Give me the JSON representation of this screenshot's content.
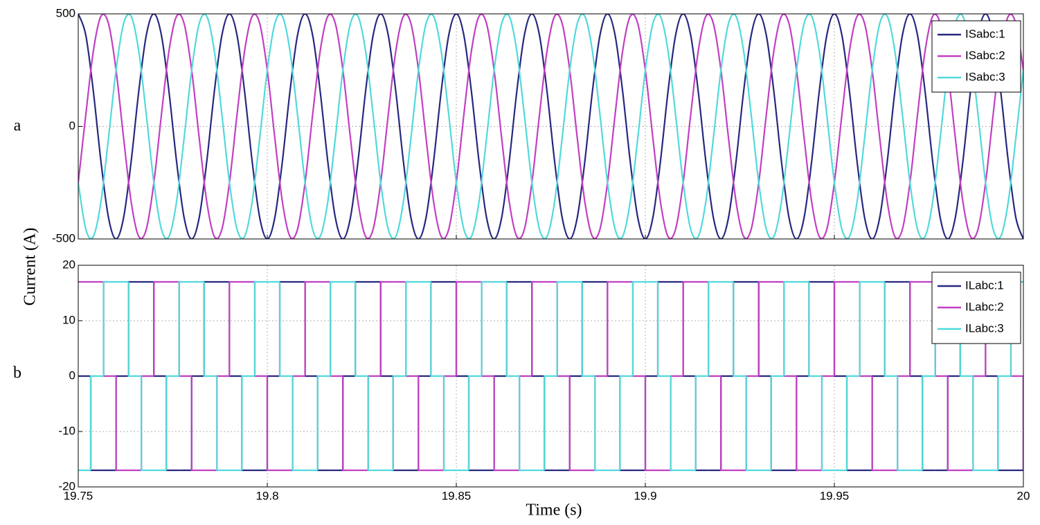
{
  "chart_data": [
    {
      "type": "line",
      "panel_label": "a",
      "ylabel": "Current (A)",
      "xlim": [
        19.75,
        20
      ],
      "xticks": [
        19.75,
        19.8,
        19.85,
        19.9,
        19.95,
        20
      ],
      "show_xticklabels": false,
      "ylim": [
        -500,
        500
      ],
      "yticks": [
        -500,
        0,
        500
      ],
      "grid": true,
      "legend": "upper right",
      "x": [
        19.75,
        19.752,
        19.754,
        19.756,
        19.758,
        19.76,
        19.762,
        19.764,
        19.766,
        19.768,
        19.77,
        19.772,
        19.774,
        19.776,
        19.778,
        19.78,
        19.782,
        19.784,
        19.786,
        19.788,
        19.79,
        19.792,
        19.794,
        19.796,
        19.798,
        19.8,
        19.802,
        19.804,
        19.806,
        19.808,
        19.81,
        19.812,
        19.814,
        19.816,
        19.818,
        19.82,
        19.822,
        19.824,
        19.826,
        19.828,
        19.83,
        19.832,
        19.834,
        19.836,
        19.838,
        19.84,
        19.842,
        19.844,
        19.846,
        19.848,
        19.85,
        19.852,
        19.854,
        19.856,
        19.858,
        19.86,
        19.862,
        19.864,
        19.866,
        19.868,
        19.87,
        19.872,
        19.874,
        19.876,
        19.878,
        19.88,
        19.882,
        19.884,
        19.886,
        19.888,
        19.89,
        19.892,
        19.894,
        19.896,
        19.898,
        19.9,
        19.902,
        19.904,
        19.906,
        19.908,
        19.91,
        19.912,
        19.914,
        19.916,
        19.918,
        19.92,
        19.922,
        19.924,
        19.926,
        19.928,
        19.93,
        19.932,
        19.934,
        19.936,
        19.938,
        19.94,
        19.942,
        19.944,
        19.946,
        19.948,
        19.95,
        19.952,
        19.954,
        19.956,
        19.958,
        19.96,
        19.962,
        19.964,
        19.966,
        19.968,
        19.97,
        19.972,
        19.974,
        19.976,
        19.978,
        19.98,
        19.982,
        19.984,
        19.986,
        19.988,
        19.99,
        19.992,
        19.994,
        19.996,
        19.998,
        20
      ],
      "series": [
        {
          "name": "ISabc:1",
          "color": "#27277f",
          "values": [
            500,
            405,
            155,
            -155,
            -405,
            -500,
            -405,
            -155,
            155,
            405,
            500,
            405,
            155,
            -155,
            -405,
            -500,
            -405,
            -155,
            155,
            405,
            500,
            405,
            155,
            -155,
            -405,
            -500,
            -405,
            -155,
            155,
            405,
            500,
            405,
            155,
            -155,
            -405,
            -500,
            -405,
            -155,
            155,
            405,
            500,
            405,
            155,
            -155,
            -405,
            -500,
            -405,
            -155,
            155,
            405,
            500,
            405,
            155,
            -155,
            -405,
            -500,
            -405,
            -155,
            155,
            405,
            500,
            405,
            155,
            -155,
            -405,
            -500,
            -405,
            -155,
            155,
            405,
            500,
            405,
            155,
            -155,
            -405,
            -500,
            -405,
            -155,
            155,
            405,
            500,
            405,
            155,
            -155,
            -405,
            -500,
            -405,
            -155,
            155,
            405,
            500,
            405,
            155,
            -155,
            -405,
            -500,
            -405,
            -155,
            155,
            405,
            500,
            405,
            155,
            -155,
            -405,
            -500,
            -405,
            -155,
            155,
            405,
            500,
            405,
            155,
            -155,
            -405,
            -500,
            -405,
            -155,
            155,
            405,
            500,
            405,
            155,
            -155,
            -405,
            -500
          ]
        },
        {
          "name": "ISabc:2",
          "color": "#c13fc1",
          "values": [
            -250,
            52,
            335,
            489,
            457,
            250,
            -52,
            -335,
            -489,
            -457,
            -250,
            52,
            335,
            489,
            457,
            250,
            -52,
            -335,
            -489,
            -457,
            -250,
            52,
            335,
            489,
            457,
            250,
            -52,
            -335,
            -489,
            -457,
            -250,
            52,
            335,
            489,
            457,
            250,
            -52,
            -335,
            -489,
            -457,
            -250,
            52,
            335,
            489,
            457,
            250,
            -52,
            -335,
            -489,
            -457,
            -250,
            52,
            335,
            489,
            457,
            250,
            -52,
            -335,
            -489,
            -457,
            -250,
            52,
            335,
            489,
            457,
            250,
            -52,
            -335,
            -489,
            -457,
            -250,
            52,
            335,
            489,
            457,
            250,
            -52,
            -335,
            -489,
            -457,
            -250,
            52,
            335,
            489,
            457,
            250,
            -52,
            -335,
            -489,
            -457,
            -250,
            52,
            335,
            489,
            457,
            250,
            -52,
            -335,
            -489,
            -457,
            -250,
            52,
            335,
            489,
            457,
            250,
            -52,
            -335,
            -489,
            -457,
            -250,
            52,
            335,
            489,
            457,
            250,
            -52,
            -335,
            -489,
            -457,
            -250,
            52,
            335,
            489,
            457,
            250
          ]
        },
        {
          "name": "ISabc:3",
          "color": "#52d9d9",
          "values": [
            -250,
            -457,
            -489,
            -335,
            -52,
            250,
            457,
            489,
            335,
            52,
            -250,
            -457,
            -489,
            -335,
            -52,
            250,
            457,
            489,
            335,
            52,
            -250,
            -457,
            -489,
            -335,
            -52,
            250,
            457,
            489,
            335,
            52,
            -250,
            -457,
            -489,
            -335,
            -52,
            250,
            457,
            489,
            335,
            52,
            -250,
            -457,
            -489,
            -335,
            -52,
            250,
            457,
            489,
            335,
            52,
            -250,
            -457,
            -489,
            -335,
            -52,
            250,
            457,
            489,
            335,
            52,
            -250,
            -457,
            -489,
            -335,
            -52,
            250,
            457,
            489,
            335,
            52,
            -250,
            -457,
            -489,
            -335,
            -52,
            250,
            457,
            489,
            335,
            52,
            -250,
            -457,
            -489,
            -335,
            -52,
            250,
            457,
            489,
            335,
            52,
            -250,
            -457,
            -489,
            -335,
            -52,
            250,
            457,
            489,
            335,
            52,
            -250,
            -457,
            -489,
            -335,
            -52,
            250,
            457,
            489,
            335,
            52,
            -250,
            -457,
            -489,
            -335,
            -52,
            250,
            457,
            489,
            335,
            52,
            -250,
            -457,
            -489,
            -335,
            -52,
            250
          ]
        }
      ]
    },
    {
      "type": "line",
      "panel_label": "b",
      "xlabel": "Time (s)",
      "step": "post",
      "xlim": [
        19.75,
        20
      ],
      "xticks": [
        19.75,
        19.8,
        19.85,
        19.9,
        19.95,
        20
      ],
      "show_xticklabels": true,
      "ylim": [
        -20,
        20
      ],
      "yticks": [
        -20,
        -10,
        0,
        10,
        20
      ],
      "grid": true,
      "legend": "upper right",
      "x": [
        19.75,
        19.7533,
        19.7567,
        19.76,
        19.7633,
        19.7667,
        19.77,
        19.7733,
        19.7767,
        19.78,
        19.7833,
        19.7867,
        19.79,
        19.7933,
        19.7967,
        19.8,
        19.8033,
        19.8067,
        19.81,
        19.8133,
        19.8167,
        19.82,
        19.8233,
        19.8267,
        19.83,
        19.8333,
        19.8367,
        19.84,
        19.8433,
        19.8467,
        19.85,
        19.8533,
        19.8567,
        19.86,
        19.8633,
        19.8667,
        19.87,
        19.8733,
        19.8767,
        19.88,
        19.8833,
        19.8867,
        19.89,
        19.8933,
        19.8967,
        19.9,
        19.9033,
        19.9067,
        19.91,
        19.9133,
        19.9167,
        19.92,
        19.9233,
        19.9267,
        19.93,
        19.9333,
        19.9367,
        19.94,
        19.9433,
        19.9467,
        19.95,
        19.9533,
        19.9567,
        19.96,
        19.9633,
        19.9667,
        19.97,
        19.9733,
        19.9767,
        19.98,
        19.9833,
        19.9867,
        19.99,
        19.9933,
        19.9967,
        20
      ],
      "series": [
        {
          "name": "ILabc:1",
          "color": "#27277f",
          "values": [
            0,
            -17,
            -17,
            0,
            17,
            17,
            0,
            -17,
            -17,
            0,
            17,
            17,
            0,
            -17,
            -17,
            0,
            17,
            17,
            0,
            -17,
            -17,
            0,
            17,
            17,
            0,
            -17,
            -17,
            0,
            17,
            17,
            0,
            -17,
            -17,
            0,
            17,
            17,
            0,
            -17,
            -17,
            0,
            17,
            17,
            0,
            -17,
            -17,
            0,
            17,
            17,
            0,
            -17,
            -17,
            0,
            17,
            17,
            0,
            -17,
            -17,
            0,
            17,
            17,
            0,
            -17,
            -17,
            0,
            17,
            17,
            0,
            -17,
            -17,
            0,
            17,
            17,
            0,
            -17,
            -17,
            0
          ]
        },
        {
          "name": "ILabc:2",
          "color": "#c13fc1",
          "values": [
            17,
            17,
            0,
            -17,
            -17,
            0,
            17,
            17,
            0,
            -17,
            -17,
            0,
            17,
            17,
            0,
            -17,
            -17,
            0,
            17,
            17,
            0,
            -17,
            -17,
            0,
            17,
            17,
            0,
            -17,
            -17,
            0,
            17,
            17,
            0,
            -17,
            -17,
            0,
            17,
            17,
            0,
            -17,
            -17,
            0,
            17,
            17,
            0,
            -17,
            -17,
            0,
            17,
            17,
            0,
            -17,
            -17,
            0,
            17,
            17,
            0,
            -17,
            -17,
            0,
            17,
            17,
            0,
            -17,
            -17,
            0,
            17,
            17,
            0,
            -17,
            -17,
            0,
            17,
            17,
            0,
            -17
          ]
        },
        {
          "name": "ILabc:3",
          "color": "#52d9d9",
          "values": [
            -17,
            0,
            17,
            17,
            0,
            -17,
            -17,
            0,
            17,
            17,
            0,
            -17,
            -17,
            0,
            17,
            17,
            0,
            -17,
            -17,
            0,
            17,
            17,
            0,
            -17,
            -17,
            0,
            17,
            17,
            0,
            -17,
            -17,
            0,
            17,
            17,
            0,
            -17,
            -17,
            0,
            17,
            17,
            0,
            -17,
            -17,
            0,
            17,
            17,
            0,
            -17,
            -17,
            0,
            17,
            17,
            0,
            -17,
            -17,
            0,
            17,
            17,
            0,
            -17,
            -17,
            0,
            17,
            17,
            0,
            -17,
            -17,
            0,
            17,
            17,
            0,
            -17,
            -17,
            0,
            17,
            17
          ]
        }
      ]
    }
  ]
}
